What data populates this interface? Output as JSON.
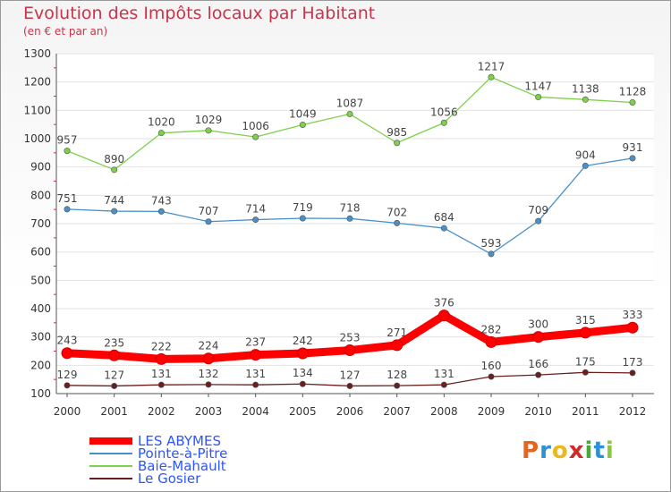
{
  "title": "Evolution des Impôts locaux par Habitant",
  "subtitle": "(en € et par an)",
  "logo": {
    "text": "Proxiti",
    "letters": [
      {
        "ch": "P",
        "color": "#e8641e"
      },
      {
        "ch": "r",
        "color": "#2d8fd4"
      },
      {
        "ch": "o",
        "color": "#e8b81e"
      },
      {
        "ch": "x",
        "color": "#d12a2a"
      },
      {
        "ch": "i",
        "color": "#49a83a"
      },
      {
        "ch": "t",
        "color": "#2d8fd4"
      },
      {
        "ch": "i",
        "color": "#8cc63e"
      }
    ]
  },
  "chart_data": {
    "type": "line",
    "x": [
      "2000",
      "2001",
      "2002",
      "2003",
      "2004",
      "2005",
      "2006",
      "2007",
      "2008",
      "2009",
      "2010",
      "2011",
      "2012"
    ],
    "ylim": [
      100,
      1300
    ],
    "yticks": [
      100,
      200,
      300,
      400,
      500,
      600,
      700,
      800,
      900,
      1000,
      1100,
      1200,
      1300
    ],
    "grid": "horizontal",
    "legend_position": "bottom-left",
    "series": [
      {
        "name": "LES ABYMES",
        "color": "#ff0000",
        "values": [
          243,
          235,
          222,
          224,
          237,
          242,
          253,
          271,
          376,
          282,
          300,
          315,
          333
        ]
      },
      {
        "name": "Pointe-à-Pitre",
        "color": "#4a90c8",
        "values": [
          751,
          744,
          743,
          707,
          714,
          719,
          718,
          702,
          684,
          593,
          709,
          904,
          931
        ]
      },
      {
        "name": "Baie-Mahault",
        "color": "#7ed04a",
        "values": [
          957,
          890,
          1020,
          1029,
          1006,
          1049,
          1087,
          985,
          1056,
          1217,
          1147,
          1138,
          1128
        ]
      },
      {
        "name": "Le Gosier",
        "color": "#6b1e1e",
        "values": [
          129,
          127,
          131,
          132,
          131,
          134,
          127,
          128,
          131,
          160,
          166,
          175,
          173
        ]
      }
    ]
  }
}
